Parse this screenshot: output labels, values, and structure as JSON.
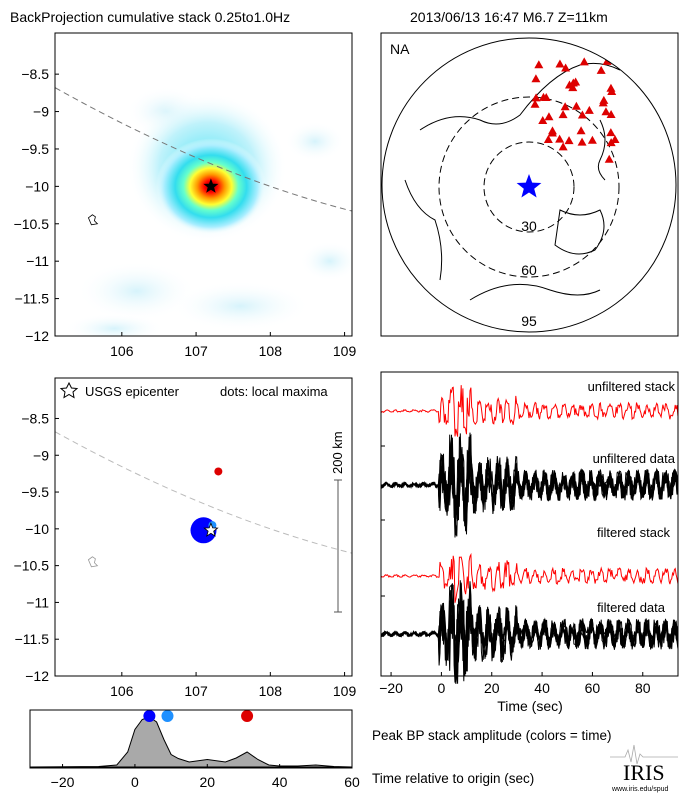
{
  "header": {
    "left_title": "BackProjection cumulative stack 0.25to1.0Hz",
    "right_title": "2013/06/13 16:47  M6.7  Z=11km"
  },
  "colors": {
    "stack": "#ff0000",
    "data": "#000000",
    "epicenter_blue": "#0000ff",
    "light_blue": "#1e90ff",
    "station": "#dd0000",
    "amplitude_fill": "#a9a9a9"
  },
  "chart_data": [
    {
      "type": "heatmap",
      "name": "cumulative-stack-map",
      "xlim": [
        105.1,
        109.1
      ],
      "ylim": [
        -12,
        -7.95
      ],
      "xticks": [
        106,
        107,
        108,
        109
      ],
      "yticks": [
        -8.5,
        -9,
        -9.5,
        -10,
        -10.5,
        -11,
        -11.5,
        -12
      ],
      "peak": {
        "x": 107.2,
        "y": -10.0
      },
      "epicenter": {
        "x": 107.2,
        "y": -10.0
      }
    },
    {
      "type": "map",
      "name": "station-map",
      "label": "NA",
      "distance_rings_deg": [
        30,
        60,
        95
      ],
      "icons": {
        "epicenter": "blue-star",
        "stations": "red-triangle"
      }
    },
    {
      "type": "scatter",
      "name": "local-maxima-map",
      "xlim": [
        105.1,
        109.1
      ],
      "ylim": [
        -12,
        -7.95
      ],
      "xticks": [
        106,
        107,
        108,
        109
      ],
      "yticks": [
        -8.5,
        -9,
        -9.5,
        -10,
        -10.5,
        -11,
        -11.5,
        -12
      ],
      "legend": {
        "epicenter": "USGS epicenter",
        "dots": "dots: local maxima"
      },
      "scale_bar": "200 km",
      "points": [
        {
          "x": 107.1,
          "y": -10.02,
          "time": 4,
          "color": "#0000ff",
          "size": "large"
        },
        {
          "x": 107.22,
          "y": -9.95,
          "time": 9,
          "color": "#1e90ff",
          "size": "small"
        },
        {
          "x": 107.3,
          "y": -9.22,
          "time": 31,
          "color": "#dd0000",
          "size": "small"
        }
      ],
      "epicenter": {
        "x": 107.2,
        "y": -10.02
      }
    },
    {
      "type": "line",
      "name": "waveforms",
      "xlim": [
        -24,
        94
      ],
      "xticks": [
        -20,
        0,
        20,
        40,
        60,
        80
      ],
      "xlabel": "Time (sec)",
      "traces": [
        "unfiltered stack",
        "unfiltered data",
        "filtered stack",
        "filtered data"
      ]
    },
    {
      "type": "area",
      "name": "peak-amplitude",
      "xlim": [
        -29,
        60
      ],
      "xticks": [
        -20,
        0,
        20,
        40,
        60
      ],
      "xlabel": "Time relative to origin (sec)",
      "title": "Peak BP stack amplitude (colors = time)",
      "x": [
        -29,
        -10,
        -5,
        -2,
        0,
        2,
        4,
        6,
        8,
        10,
        12,
        15,
        20,
        25,
        28,
        31,
        34,
        37,
        40,
        45,
        50,
        55,
        60
      ],
      "y": [
        0.0,
        0.01,
        0.04,
        0.3,
        0.75,
        0.95,
        1.0,
        0.9,
        0.55,
        0.25,
        0.17,
        0.1,
        0.15,
        0.1,
        0.18,
        0.3,
        0.15,
        0.04,
        0.02,
        0.02,
        0.04,
        0.01,
        0.0
      ],
      "markers": [
        {
          "x": 4,
          "color": "#0000ff"
        },
        {
          "x": 9,
          "color": "#1e90ff"
        },
        {
          "x": 31,
          "color": "#dd0000"
        }
      ]
    }
  ],
  "logo": {
    "text": "IRIS",
    "url_text": "www.iris.edu/spud"
  }
}
